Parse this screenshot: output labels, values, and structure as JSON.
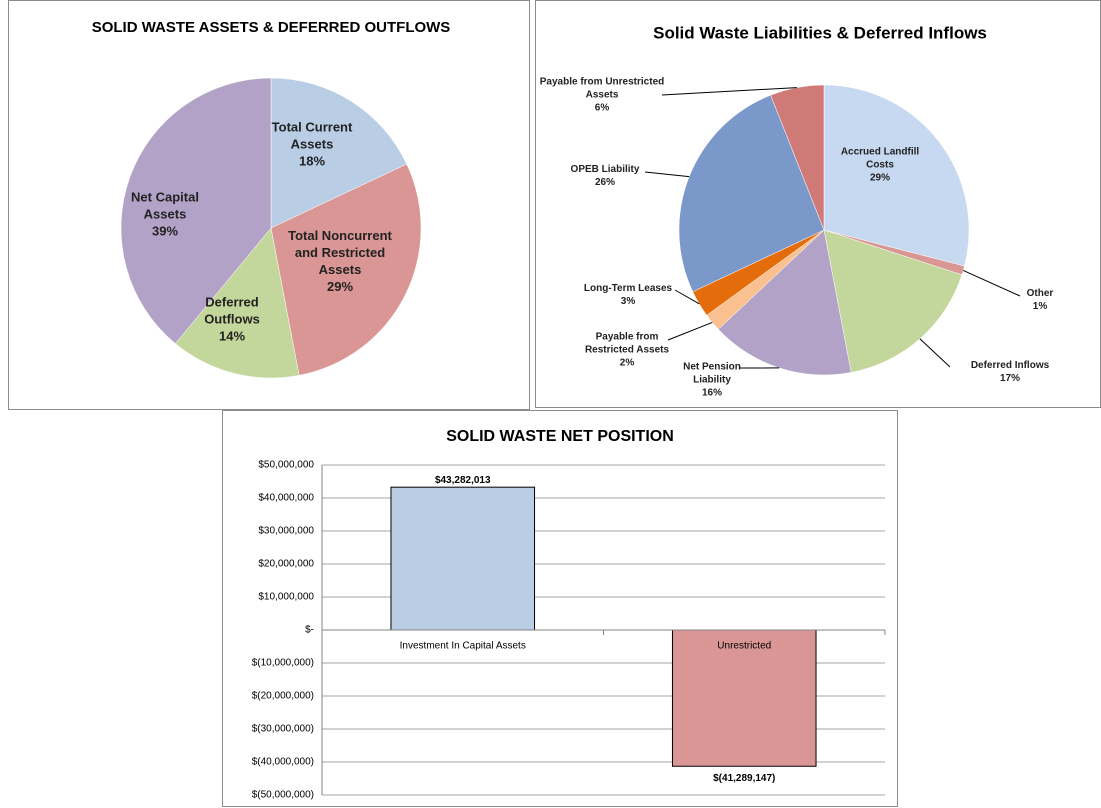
{
  "chart_data": [
    {
      "type": "pie",
      "title": "SOLID WASTE ASSETS & DEFERRED OUTFLOWS",
      "categories": [
        "Total Current Assets",
        "Total Noncurrent and Restricted Assets",
        "Deferred Outflows",
        "Net Capital Assets"
      ],
      "values": [
        18,
        29,
        14,
        39
      ],
      "value_labels": [
        "18%",
        "29%",
        "14%",
        "39%"
      ],
      "colors": [
        "#b9cde5",
        "#d99694",
        "#c3d69b",
        "#b3a2c7"
      ]
    },
    {
      "type": "pie",
      "title": "Solid Waste Liabilities & Deferred Inflows",
      "categories": [
        "Accrued Landfill Costs",
        "Other",
        "Deferred Inflows",
        "Net Pension Liability",
        "Payable from Restricted Assets",
        "Long-Term Leases",
        "OPEB Liability",
        "Payable from Unrestricted Assets"
      ],
      "values": [
        29,
        1,
        17,
        16,
        2,
        3,
        26,
        6
      ],
      "value_labels": [
        "29%",
        "1%",
        "17%",
        "16%",
        "2%",
        "3%",
        "26%",
        "6%"
      ],
      "colors": [
        "#c6d9f1",
        "#d99694",
        "#c3d69b",
        "#b3a2c7",
        "#fac090",
        "#e46c0a",
        "#7a98c9",
        "#d07a78"
      ]
    },
    {
      "type": "bar",
      "title": "SOLID WASTE NET POSITION",
      "categories": [
        "Investment In Capital Assets",
        "Unrestricted"
      ],
      "values": [
        43282013,
        -41289147
      ],
      "value_labels": [
        "$43,282,013",
        "$(41,289,147)"
      ],
      "colors": [
        "#b9cde5",
        "#d99694"
      ],
      "ylim": [
        -50000000,
        50000000
      ],
      "yticks": [
        {
          "value": -50000000,
          "label": "$(50,000,000)"
        },
        {
          "value": -40000000,
          "label": "$(40,000,000)"
        },
        {
          "value": -30000000,
          "label": "$(30,000,000)"
        },
        {
          "value": -20000000,
          "label": "$(20,000,000)"
        },
        {
          "value": -10000000,
          "label": "$(10,000,000)"
        },
        {
          "value": 0,
          "label": "$-"
        },
        {
          "value": 10000000,
          "label": "$10,000,000"
        },
        {
          "value": 20000000,
          "label": "$20,000,000"
        },
        {
          "value": 30000000,
          "label": "$30,000,000"
        },
        {
          "value": 40000000,
          "label": "$40,000,000"
        },
        {
          "value": 50000000,
          "label": "$50,000,000"
        }
      ],
      "grid": true
    }
  ]
}
